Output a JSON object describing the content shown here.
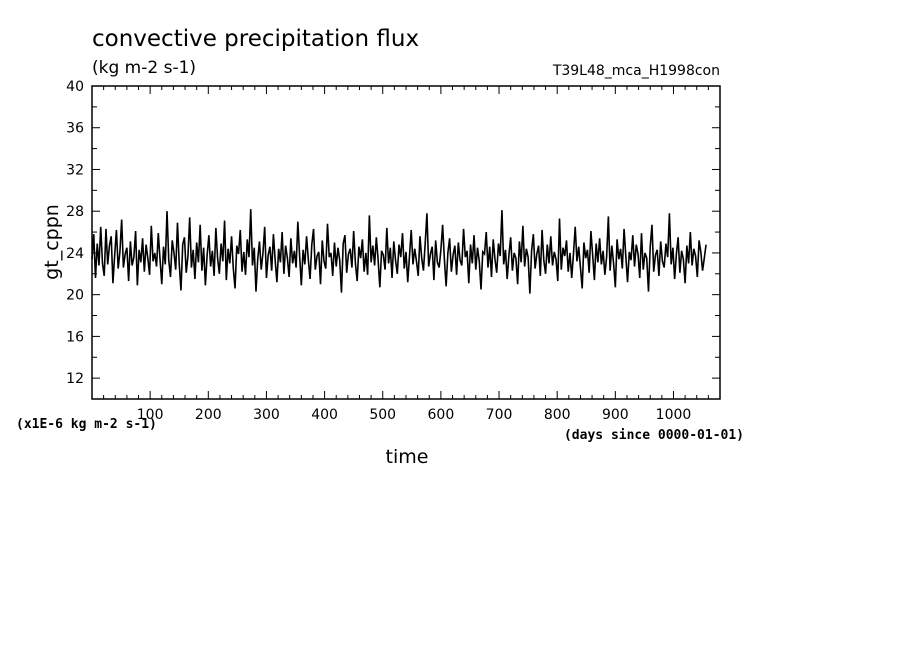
{
  "chart_data": {
    "type": "line",
    "title": "convective precipitation flux",
    "units": "(kg m-2 s-1)",
    "run_label": "T39L48_mca_H1998con",
    "xlabel": "time",
    "xunits": "(days since 0000-01-01)",
    "ylabel": "gt_cppn",
    "yscale_note": "(x1E-6 kg m-2 s-1)",
    "xlim": [
      0,
      1080
    ],
    "ylim": [
      10,
      40
    ],
    "x_ticks": [
      100,
      200,
      300,
      400,
      500,
      600,
      700,
      800,
      900,
      1000
    ],
    "y_ticks": [
      12,
      16,
      20,
      24,
      28,
      32,
      36,
      40
    ],
    "grid": false,
    "series": [
      {
        "x_start": 0,
        "x_step": 3,
        "values": [
          23.4,
          25.8,
          21.6,
          24.9,
          22.8,
          26.5,
          23.0,
          21.8,
          26.3,
          22.9,
          24.7,
          25.6,
          21.1,
          23.8,
          26.2,
          22.5,
          24.1,
          27.2,
          22.6,
          23.9,
          24.5,
          21.3,
          25.1,
          22.8,
          23.6,
          26.1,
          20.9,
          24.3,
          23.1,
          25.4,
          22.2,
          24.8,
          23.5,
          21.9,
          26.6,
          23.2,
          24.0,
          22.7,
          25.9,
          23.4,
          21.0,
          24.6,
          22.9,
          28.0,
          23.3,
          21.7,
          25.2,
          24.0,
          22.4,
          26.9,
          23.0,
          20.4,
          24.8,
          25.5,
          22.1,
          23.7,
          27.4,
          22.6,
          24.3,
          21.5,
          25.0,
          23.1,
          26.7,
          22.3,
          24.5,
          20.9,
          23.8,
          25.7,
          22.7,
          24.2,
          21.8,
          26.4,
          23.5,
          22.0,
          24.9,
          23.2,
          27.1,
          21.4,
          24.4,
          23.0,
          25.6,
          22.5,
          20.6,
          24.7,
          23.9,
          26.2,
          22.2,
          24.1,
          21.9,
          25.3,
          23.6,
          28.2,
          22.8,
          24.5,
          20.3,
          23.4,
          25.1,
          22.4,
          24.0,
          26.5,
          21.6,
          23.8,
          24.6,
          22.3,
          25.8,
          23.3,
          21.2,
          24.4,
          23.1,
          26.0,
          22.0,
          24.7,
          23.5,
          21.7,
          25.4,
          23.0,
          24.2,
          22.6,
          27.0,
          23.8,
          20.9,
          24.3,
          22.9,
          25.6,
          23.4,
          21.5,
          24.8,
          26.3,
          22.4,
          23.7,
          24.1,
          21.0,
          25.2,
          23.2,
          22.5,
          26.8,
          23.6,
          24.0,
          21.8,
          25.0,
          22.7,
          24.5,
          23.3,
          20.2,
          24.9,
          25.7,
          22.1,
          23.9,
          24.4,
          22.6,
          26.1,
          23.0,
          21.3,
          24.6,
          23.5,
          25.3,
          22.2,
          24.0,
          21.9,
          27.6,
          23.1,
          24.7,
          22.8,
          25.5,
          23.4,
          20.7,
          24.2,
          23.8,
          22.4,
          26.4,
          23.0,
          24.5,
          21.6,
          25.1,
          23.3,
          22.0,
          24.8,
          23.6,
          25.9,
          22.5,
          24.1,
          21.2,
          23.7,
          26.2,
          22.9,
          24.4,
          23.2,
          21.8,
          25.6,
          23.5,
          22.3,
          24.9,
          27.8,
          22.7,
          23.9,
          24.6,
          21.4,
          25.2,
          23.1,
          22.6,
          24.3,
          26.7,
          23.4,
          20.8,
          24.0,
          25.4,
          22.2,
          23.8,
          24.7,
          21.9,
          25.0,
          23.3,
          22.8,
          26.3,
          23.6,
          24.2,
          21.1,
          24.8,
          23.0,
          25.7,
          22.4,
          24.5,
          23.2,
          20.5,
          24.1,
          23.9,
          26.0,
          22.6,
          24.6,
          21.7,
          25.3,
          23.4,
          22.1,
          24.9,
          23.7,
          28.1,
          22.9,
          24.3,
          21.5,
          23.8,
          25.5,
          22.3,
          24.0,
          23.5,
          21.0,
          25.1,
          23.1,
          26.6,
          22.7,
          24.4,
          23.6,
          20.1,
          24.2,
          25.8,
          22.5,
          23.9,
          24.7,
          21.8,
          26.2,
          23.3,
          22.0,
          24.8,
          23.0,
          25.6,
          22.8,
          24.1,
          23.4,
          21.3,
          27.3,
          22.4,
          24.5,
          23.7,
          25.2,
          22.2,
          24.0,
          21.6,
          23.9,
          26.5,
          23.2,
          24.6,
          22.6,
          20.6,
          25.0,
          23.5,
          24.3,
          22.1,
          26.1,
          23.8,
          21.4,
          24.9,
          23.1,
          25.4,
          22.9,
          24.2,
          21.9,
          23.6,
          27.5,
          22.3,
          24.7,
          23.0,
          20.7,
          25.3,
          23.4,
          24.4,
          22.5,
          26.3,
          23.7,
          21.2,
          24.1,
          23.3,
          25.7,
          22.7,
          24.8,
          23.9,
          21.6,
          25.9,
          22.4,
          24.0,
          23.5,
          20.3,
          24.6,
          26.7,
          22.2,
          23.8,
          24.3,
          21.8,
          25.1,
          23.2,
          22.6,
          24.9,
          23.6,
          27.8,
          22.9,
          24.5,
          21.5,
          23.9,
          25.5,
          22.1,
          24.2,
          23.4,
          21.1,
          24.7,
          23.0,
          26.0,
          22.8,
          24.4,
          23.7,
          21.7,
          25.2,
          24.1,
          22.3,
          23.5,
          24.8
        ]
      }
    ]
  }
}
